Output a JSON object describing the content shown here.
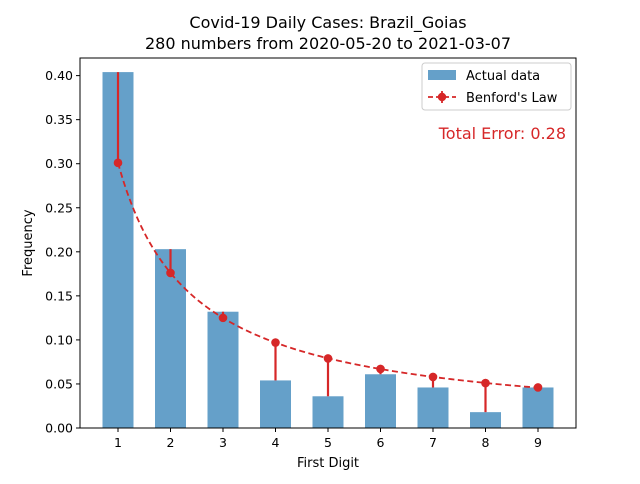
{
  "chart_data": {
    "type": "bar",
    "title": "Covid-19 Daily Cases: Brazil_Goias",
    "subtitle": "280 numbers from 2020-05-20 to 2021-03-07",
    "xlabel": "First Digit",
    "ylabel": "Frequency",
    "ylim": [
      0,
      0.42
    ],
    "yticks": [
      "0.00",
      "0.05",
      "0.10",
      "0.15",
      "0.20",
      "0.25",
      "0.30",
      "0.35",
      "0.40"
    ],
    "categories": [
      "1",
      "2",
      "3",
      "4",
      "5",
      "6",
      "7",
      "8",
      "9"
    ],
    "series": [
      {
        "name": "Actual data",
        "kind": "bar",
        "color": "#4a8fbf",
        "values": [
          0.404,
          0.203,
          0.132,
          0.054,
          0.036,
          0.061,
          0.046,
          0.018,
          0.046
        ]
      },
      {
        "name": "Benford's Law",
        "kind": "line",
        "color": "#d62728",
        "values": [
          0.301,
          0.176,
          0.125,
          0.097,
          0.079,
          0.067,
          0.058,
          0.051,
          0.046
        ]
      }
    ],
    "annotation": "Total Error: 0.28",
    "legend_position": "top-right",
    "grid": false
  }
}
